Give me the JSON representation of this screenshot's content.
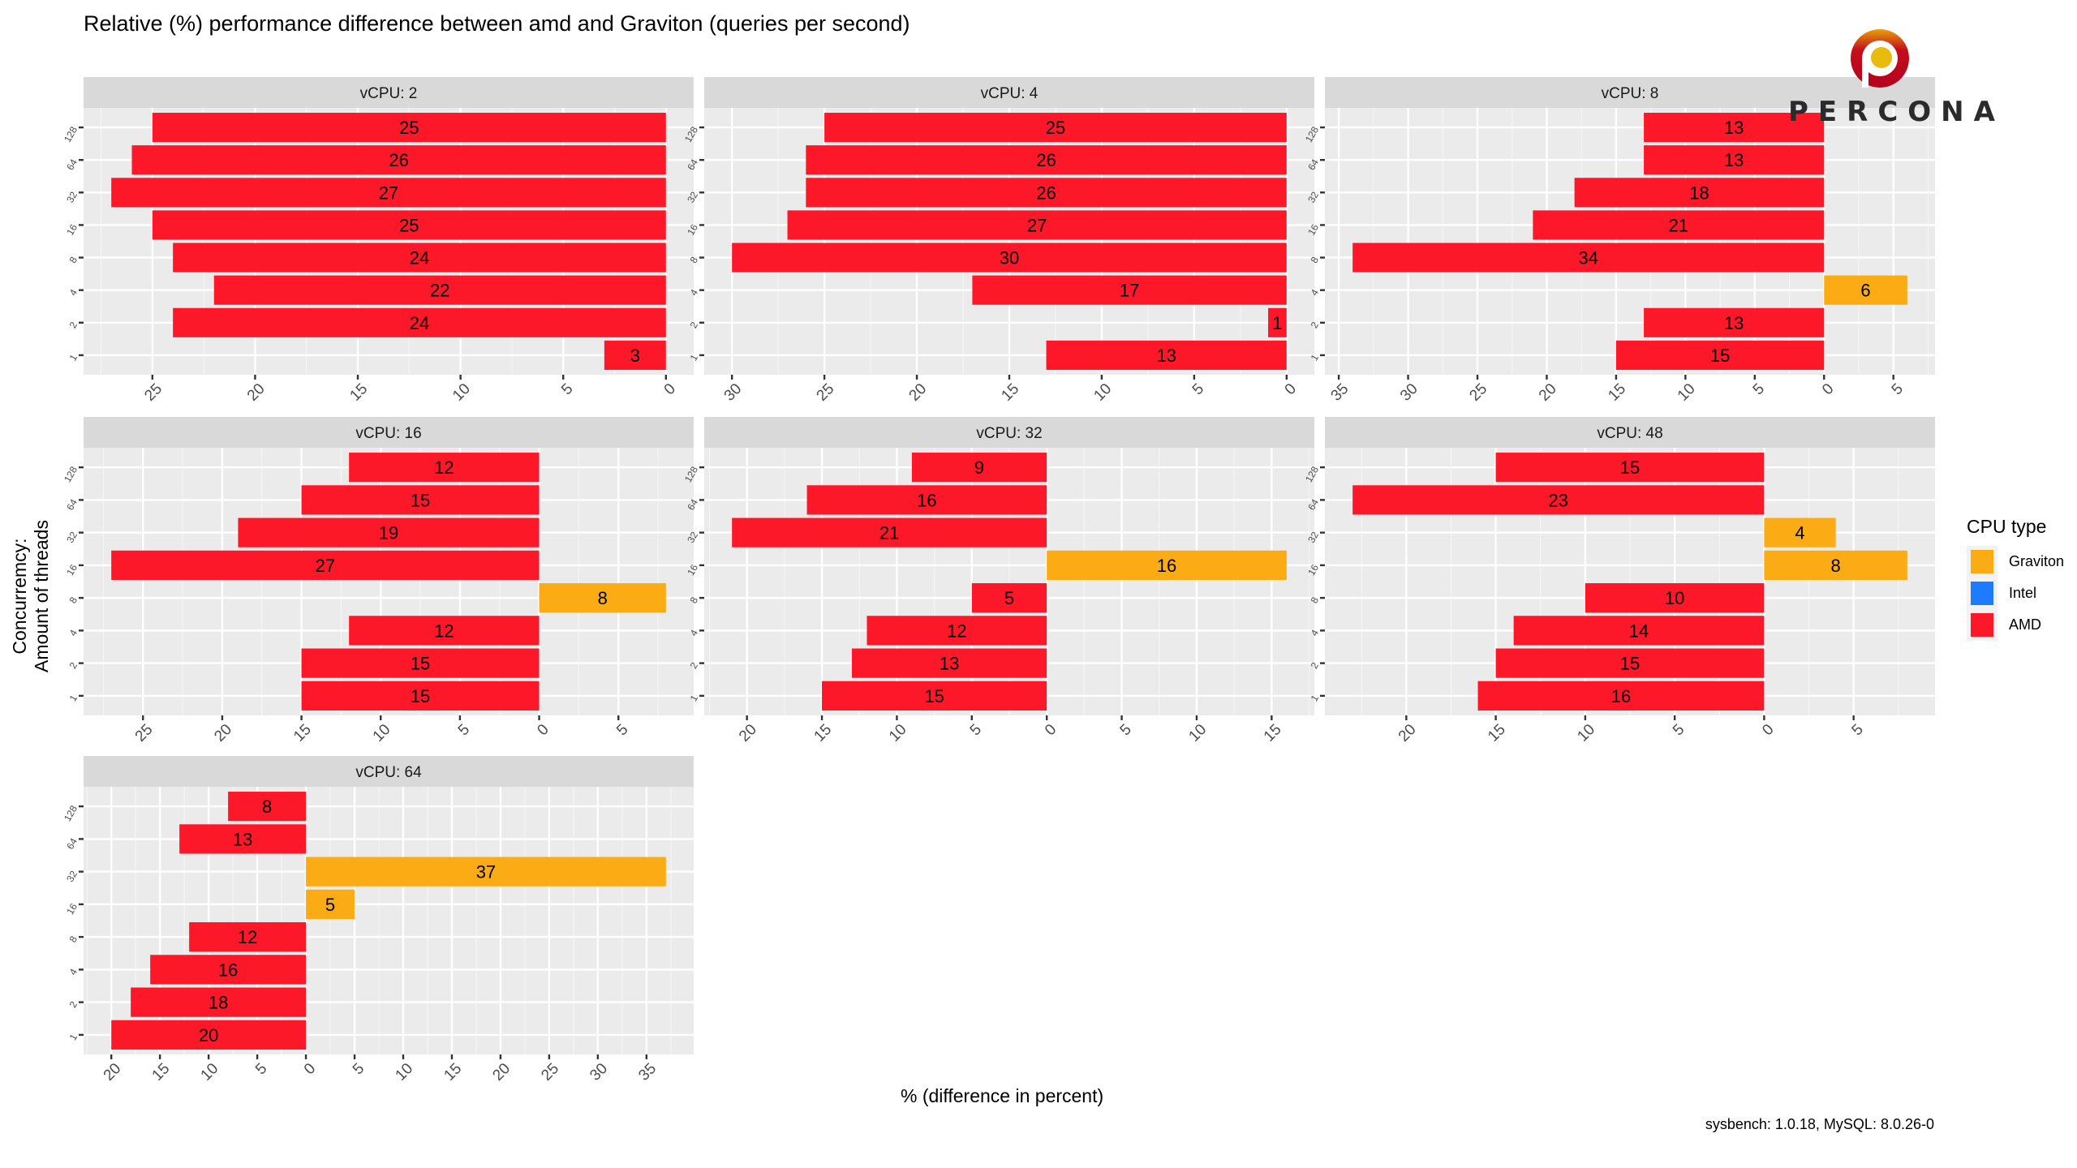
{
  "chart_data": {
    "type": "bar",
    "orientation": "horizontal",
    "facet_by": "vCPU",
    "title": "Relative (%) performance difference between amd and Graviton (queries per second)",
    "xlabel": "% (difference in percent)",
    "ylabel": "Concurremcy:\nAmount of threads",
    "ylabel_lines": [
      "Concurremcy:",
      "Amount of threads"
    ],
    "caption": "sysbench: 1.0.18, MySQL: 8.0.26-0",
    "categories": [
      "128",
      "64",
      "32",
      "16",
      "8",
      "4",
      "2",
      "1"
    ],
    "sign_convention": "negative = AMD faster (bar drawn left), positive = Graviton faster (bar drawn right); axis tick labels show absolute values",
    "tick_step": 5,
    "grid": true,
    "legend": {
      "title": "CPU type",
      "position": "right",
      "items": [
        {
          "name": "Graviton",
          "color": "#FBAB14"
        },
        {
          "name": "Intel",
          "color": "#1F7BFD"
        },
        {
          "name": "AMD",
          "color": "#FC1828"
        }
      ]
    },
    "panels": [
      {
        "strip": "vCPU: 2",
        "vcpu": 2,
        "values": [
          -25,
          -26,
          -27,
          -25,
          -24,
          -22,
          -24,
          -3
        ],
        "types": [
          "AMD",
          "AMD",
          "AMD",
          "AMD",
          "AMD",
          "AMD",
          "AMD",
          "AMD"
        ]
      },
      {
        "strip": "vCPU: 4",
        "vcpu": 4,
        "values": [
          -25,
          -26,
          -26,
          -27,
          -30,
          -17,
          -1,
          -13
        ],
        "types": [
          "AMD",
          "AMD",
          "AMD",
          "AMD",
          "AMD",
          "AMD",
          "AMD",
          "AMD"
        ]
      },
      {
        "strip": "vCPU: 8",
        "vcpu": 8,
        "values": [
          -13,
          -13,
          -18,
          -21,
          -34,
          6,
          -13,
          -15
        ],
        "types": [
          "AMD",
          "AMD",
          "AMD",
          "AMD",
          "AMD",
          "Graviton",
          "AMD",
          "AMD"
        ]
      },
      {
        "strip": "vCPU: 16",
        "vcpu": 16,
        "values": [
          -12,
          -15,
          -19,
          -27,
          8,
          -12,
          -15,
          -15
        ],
        "types": [
          "AMD",
          "AMD",
          "AMD",
          "AMD",
          "Graviton",
          "AMD",
          "AMD",
          "AMD"
        ]
      },
      {
        "strip": "vCPU: 32",
        "vcpu": 32,
        "values": [
          -9,
          -16,
          -21,
          16,
          -5,
          -12,
          -13,
          -15
        ],
        "types": [
          "AMD",
          "AMD",
          "AMD",
          "Graviton",
          "AMD",
          "AMD",
          "AMD",
          "AMD"
        ]
      },
      {
        "strip": "vCPU: 48",
        "vcpu": 48,
        "values": [
          -15,
          -23,
          4,
          8,
          -10,
          -14,
          -15,
          -16
        ],
        "types": [
          "AMD",
          "AMD",
          "Graviton",
          "Graviton",
          "AMD",
          "AMD",
          "AMD",
          "AMD"
        ]
      },
      {
        "strip": "vCPU: 64",
        "vcpu": 64,
        "values": [
          -8,
          -13,
          37,
          5,
          -12,
          -16,
          -18,
          -20
        ],
        "types": [
          "AMD",
          "AMD",
          "Graviton",
          "Graviton",
          "AMD",
          "AMD",
          "AMD",
          "AMD"
        ]
      }
    ]
  },
  "logo": {
    "text": "PERCONA",
    "ring_color": "#B5001F",
    "dot_color": "#E8BB0C"
  }
}
